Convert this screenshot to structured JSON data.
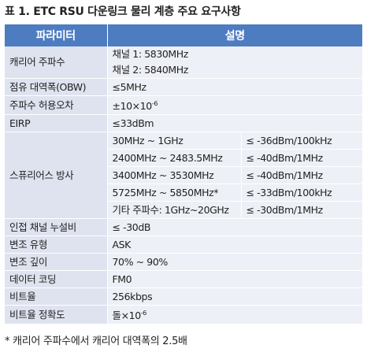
{
  "caption": "표 1. ETC RSU 다운링크 물리 계층 주요 요구사항",
  "header": {
    "param": "파라미터",
    "desc": "설명"
  },
  "rows": {
    "carrier": {
      "param": "캐리어 주파수",
      "line1": "채널 1: 5830MHz",
      "line2": "채널 2: 5840MHz"
    },
    "obw": {
      "param": "점유 대역폭(OBW)",
      "value": "≤5MHz"
    },
    "tolerance": {
      "param": "주파수 허용오차",
      "base": "±10×10",
      "exp": "-6"
    },
    "eirp": {
      "param": "EIRP",
      "value": "≤33dBm"
    },
    "spurious": {
      "param": "스퓨리어스 방사",
      "items": [
        {
          "range": "30MHz ~ 1GHz",
          "limit": "≤ -36dBm/100kHz"
        },
        {
          "range": "2400MHz ~ 2483.5MHz",
          "limit": "≤ -40dBm/1MHz"
        },
        {
          "range": "3400MHz ~ 3530MHz",
          "limit": "≤ -40dBm/1MHz"
        },
        {
          "range": "5725MHz ~ 5850MHz*",
          "limit": "≤ -33dBm/100kHz"
        },
        {
          "range": "기타 주파수: 1GHz~20GHz",
          "limit": "≤ -30dBm/1MHz"
        }
      ]
    },
    "acl": {
      "param": "인접 채널 누설비",
      "value": "≤ -30dB"
    },
    "modtype": {
      "param": "변조 유형",
      "value": "ASK"
    },
    "moddepth": {
      "param": "변조 깊이",
      "value": "70% ~ 90%"
    },
    "coding": {
      "param": "데이터 코딩",
      "value": "FM0"
    },
    "bitrate": {
      "param": "비트율",
      "value": "256kbps"
    },
    "bitacc": {
      "param": "비트율 정확도",
      "base": "돌×10",
      "exp": "-6"
    }
  },
  "footnote": "* 캐리어 주파수에서 캐리어 대역폭의 2.5배"
}
